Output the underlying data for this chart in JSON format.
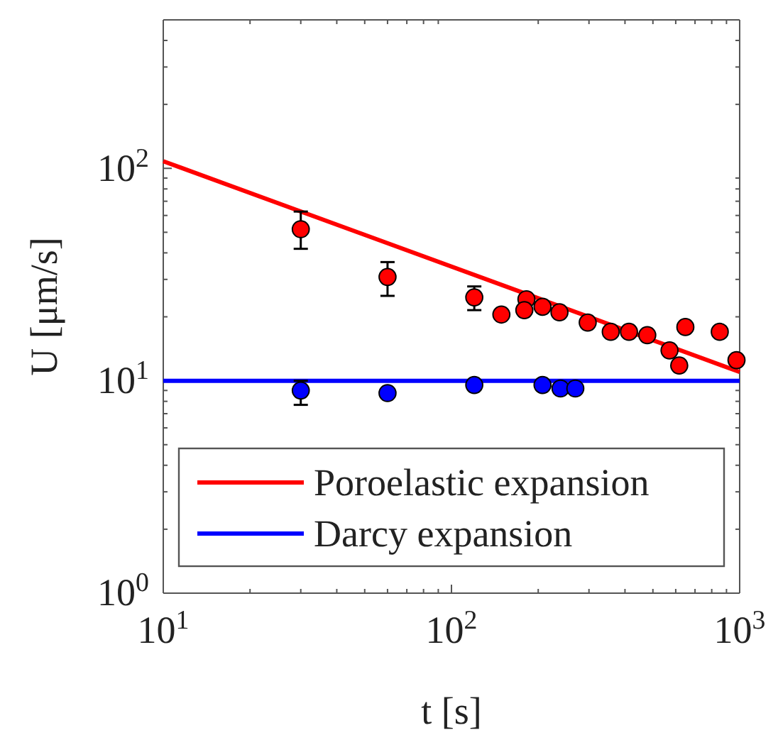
{
  "chart_data": {
    "type": "scatter",
    "xlabel": "t [s]",
    "ylabel": "U [μm/s]",
    "log": "xy",
    "grid": false,
    "legend": "bottom",
    "xlim": [
      10,
      1000
    ],
    "ylim": [
      1,
      500
    ],
    "xticks": [
      {
        "value": 10,
        "label": "10$^{1}$"
      },
      {
        "value": 100,
        "label": "10$^{2}$"
      },
      {
        "value": 1000,
        "label": "10$^{3}$"
      }
    ],
    "yticks": [
      {
        "value": 1,
        "label": "10$^{0}$"
      },
      {
        "value": 10,
        "label": "10$^{1}$"
      },
      {
        "value": 100,
        "label": "10$^{2}$"
      }
    ],
    "series": [
      {
        "type": "line",
        "name": "Poroelastic expansion",
        "color": "#ff0000",
        "x": [
          10,
          1000
        ],
        "values": [
          108,
          11
        ],
        "line_style": "solid",
        "marker": "none"
      },
      {
        "type": "line",
        "name": "Darcy expansion",
        "color": "#0000ff",
        "x": [
          10,
          1000
        ],
        "values": [
          10,
          10
        ],
        "line_style": "solid",
        "marker": "none"
      },
      {
        "color": "#ff0000",
        "marker": "circle",
        "x": [
          30,
          60,
          120,
          149,
          182,
          179,
          207,
          237,
          297,
          357,
          413,
          478,
          571,
          617,
          648,
          853,
          975
        ],
        "values": [
          51.7,
          30.8,
          24.7,
          20.5,
          24.2,
          21.5,
          22.3,
          21.0,
          18.8,
          17.0,
          17.0,
          16.4,
          13.9,
          11.8,
          17.9,
          17.0,
          12.5
        ],
        "errors": [
          [
            41.8,
            62.6
          ],
          [
            25.1,
            36.2
          ],
          [
            21.5,
            27.8
          ],
          null,
          null,
          null,
          null,
          null,
          null,
          null,
          null,
          null,
          null,
          null,
          null,
          null,
          null
        ]
      },
      {
        "color": "#0000ff",
        "marker": "circle",
        "x": [
          30,
          60,
          120,
          207,
          239,
          269
        ],
        "values": [
          9.0,
          8.75,
          9.55,
          9.55,
          9.2,
          9.2
        ],
        "errors": [
          [
            7.7,
            10.0
          ],
          null,
          null,
          null,
          null,
          null
        ]
      }
    ]
  }
}
